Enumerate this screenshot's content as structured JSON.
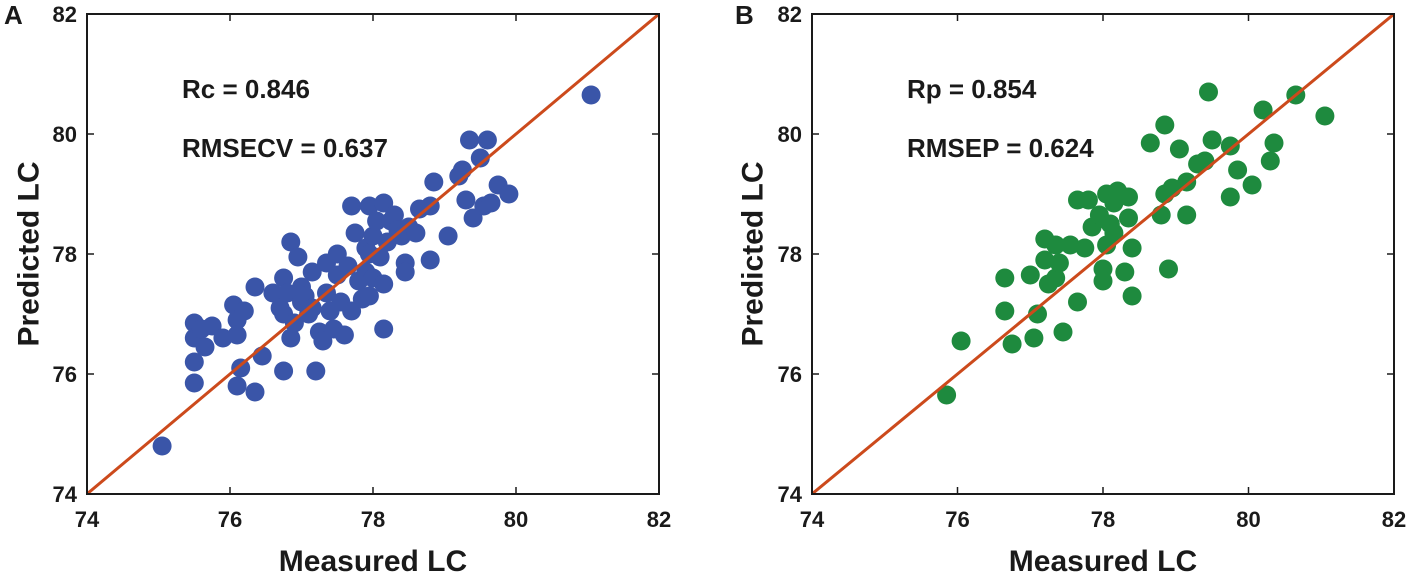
{
  "chart_data": [
    {
      "type": "scatter",
      "panel_label": "A",
      "xlabel": "Measured LC",
      "ylabel": "Predicted LC",
      "xlim": [
        74,
        82
      ],
      "ylim": [
        74,
        82
      ],
      "xticks": [
        74,
        76,
        78,
        80,
        82
      ],
      "yticks": [
        74,
        76,
        78,
        80,
        82
      ],
      "grid": false,
      "reference_line": "y = x",
      "colors": {
        "points": "#3a55a8",
        "line": "#cc4a1c"
      },
      "annotations": [
        "Rc = 0.846",
        "RMSECV = 0.637"
      ],
      "points": [
        [
          75.05,
          74.8
        ],
        [
          75.5,
          75.85
        ],
        [
          75.5,
          76.2
        ],
        [
          75.5,
          76.6
        ],
        [
          75.5,
          76.85
        ],
        [
          75.6,
          76.75
        ],
        [
          75.65,
          76.45
        ],
        [
          75.75,
          76.8
        ],
        [
          75.9,
          76.6
        ],
        [
          76.05,
          77.15
        ],
        [
          76.1,
          76.9
        ],
        [
          76.1,
          76.65
        ],
        [
          76.2,
          77.05
        ],
        [
          76.1,
          75.8
        ],
        [
          76.15,
          76.1
        ],
        [
          76.35,
          75.7
        ],
        [
          76.35,
          77.45
        ],
        [
          76.45,
          76.3
        ],
        [
          76.6,
          77.35
        ],
        [
          76.7,
          77.1
        ],
        [
          76.75,
          77.6
        ],
        [
          76.75,
          77.0
        ],
        [
          76.75,
          76.05
        ],
        [
          76.8,
          77.35
        ],
        [
          76.85,
          78.2
        ],
        [
          76.85,
          76.6
        ],
        [
          76.9,
          76.85
        ],
        [
          76.95,
          77.95
        ],
        [
          77.0,
          77.2
        ],
        [
          77.0,
          77.45
        ],
        [
          77.05,
          77.3
        ],
        [
          77.1,
          77.0
        ],
        [
          77.15,
          77.7
        ],
        [
          77.15,
          77.1
        ],
        [
          77.2,
          76.05
        ],
        [
          77.25,
          76.7
        ],
        [
          77.3,
          76.55
        ],
        [
          77.35,
          77.85
        ],
        [
          77.35,
          77.35
        ],
        [
          77.4,
          77.05
        ],
        [
          77.45,
          76.75
        ],
        [
          77.5,
          78.0
        ],
        [
          77.5,
          77.65
        ],
        [
          77.55,
          77.2
        ],
        [
          77.6,
          76.65
        ],
        [
          77.65,
          77.8
        ],
        [
          77.7,
          78.8
        ],
        [
          77.7,
          77.05
        ],
        [
          77.75,
          78.35
        ],
        [
          77.8,
          77.55
        ],
        [
          77.85,
          77.25
        ],
        [
          77.9,
          78.1
        ],
        [
          77.9,
          77.7
        ],
        [
          77.95,
          78.8
        ],
        [
          77.95,
          78.0
        ],
        [
          77.95,
          77.3
        ],
        [
          78.0,
          78.3
        ],
        [
          78.0,
          77.6
        ],
        [
          78.05,
          78.55
        ],
        [
          78.1,
          77.95
        ],
        [
          78.15,
          76.75
        ],
        [
          78.15,
          77.5
        ],
        [
          78.15,
          78.85
        ],
        [
          78.2,
          78.2
        ],
        [
          78.25,
          78.55
        ],
        [
          78.3,
          78.65
        ],
        [
          78.35,
          78.4
        ],
        [
          78.4,
          78.3
        ],
        [
          78.45,
          77.85
        ],
        [
          78.45,
          77.7
        ],
        [
          78.5,
          78.45
        ],
        [
          78.6,
          78.35
        ],
        [
          78.65,
          78.75
        ],
        [
          78.8,
          78.8
        ],
        [
          78.8,
          77.9
        ],
        [
          78.85,
          79.2
        ],
        [
          79.05,
          78.3
        ],
        [
          79.2,
          79.3
        ],
        [
          79.25,
          79.4
        ],
        [
          79.3,
          78.9
        ],
        [
          79.35,
          79.9
        ],
        [
          79.4,
          78.6
        ],
        [
          79.5,
          79.6
        ],
        [
          79.55,
          78.8
        ],
        [
          79.6,
          79.9
        ],
        [
          79.65,
          78.85
        ],
        [
          79.75,
          79.15
        ],
        [
          79.9,
          79.0
        ],
        [
          81.05,
          80.65
        ]
      ]
    },
    {
      "type": "scatter",
      "panel_label": "B",
      "xlabel": "Measured LC",
      "ylabel": "Predicted LC",
      "xlim": [
        74,
        82
      ],
      "ylim": [
        74,
        82
      ],
      "xticks": [
        74,
        76,
        78,
        80,
        82
      ],
      "yticks": [
        74,
        76,
        78,
        80,
        82
      ],
      "grid": false,
      "reference_line": "y = x",
      "colors": {
        "points": "#1e8a3e",
        "line": "#cc4a1c"
      },
      "annotations": [
        "Rp = 0.854",
        "RMSEP = 0.624"
      ],
      "points": [
        [
          75.85,
          75.65
        ],
        [
          76.05,
          76.55
        ],
        [
          76.65,
          77.05
        ],
        [
          76.65,
          77.6
        ],
        [
          76.75,
          76.5
        ],
        [
          77.0,
          77.65
        ],
        [
          77.05,
          76.6
        ],
        [
          77.1,
          77.0
        ],
        [
          77.2,
          77.9
        ],
        [
          77.2,
          78.25
        ],
        [
          77.25,
          77.5
        ],
        [
          77.35,
          77.6
        ],
        [
          77.35,
          78.15
        ],
        [
          77.4,
          77.85
        ],
        [
          77.45,
          76.7
        ],
        [
          77.55,
          78.15
        ],
        [
          77.65,
          78.9
        ],
        [
          77.65,
          77.2
        ],
        [
          77.75,
          78.1
        ],
        [
          77.8,
          78.9
        ],
        [
          77.85,
          78.45
        ],
        [
          77.95,
          78.65
        ],
        [
          78.0,
          77.75
        ],
        [
          78.0,
          77.55
        ],
        [
          78.05,
          78.15
        ],
        [
          78.05,
          79.0
        ],
        [
          78.1,
          78.5
        ],
        [
          78.15,
          78.85
        ],
        [
          78.15,
          78.35
        ],
        [
          78.2,
          79.05
        ],
        [
          78.3,
          77.7
        ],
        [
          78.35,
          78.95
        ],
        [
          78.35,
          78.6
        ],
        [
          78.4,
          77.3
        ],
        [
          78.4,
          78.1
        ],
        [
          78.65,
          79.85
        ],
        [
          78.8,
          78.65
        ],
        [
          78.85,
          80.15
        ],
        [
          78.85,
          79.0
        ],
        [
          78.9,
          77.75
        ],
        [
          78.95,
          79.1
        ],
        [
          79.05,
          79.75
        ],
        [
          79.15,
          78.65
        ],
        [
          79.15,
          79.2
        ],
        [
          79.3,
          79.5
        ],
        [
          79.4,
          79.55
        ],
        [
          79.45,
          80.7
        ],
        [
          79.5,
          79.9
        ],
        [
          79.75,
          79.8
        ],
        [
          79.75,
          78.95
        ],
        [
          79.85,
          79.4
        ],
        [
          80.05,
          79.15
        ],
        [
          80.2,
          80.4
        ],
        [
          80.3,
          79.55
        ],
        [
          80.35,
          79.85
        ],
        [
          80.65,
          80.65
        ],
        [
          81.05,
          80.3
        ]
      ]
    }
  ]
}
